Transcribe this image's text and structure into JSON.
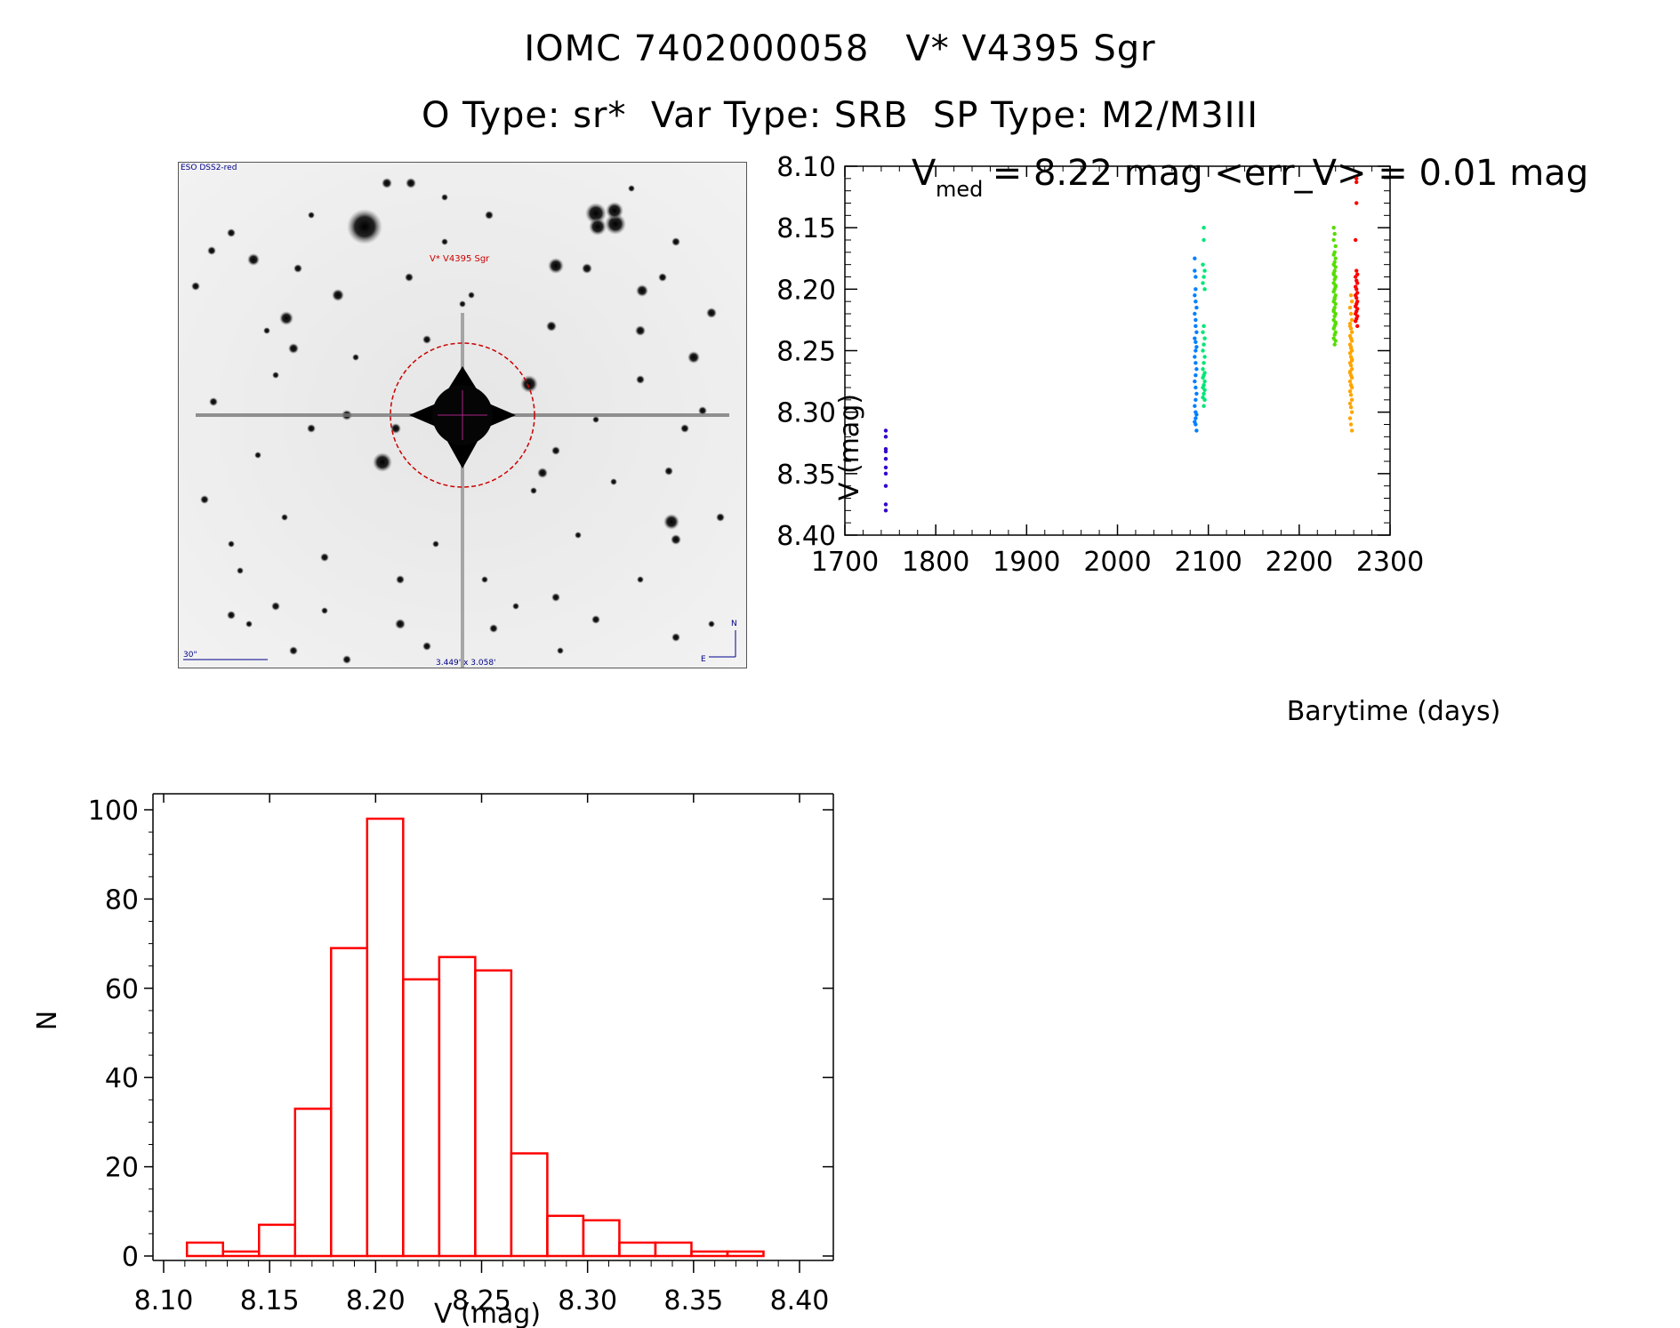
{
  "header": {
    "line1": "IOMC 7402000058   V* V4395 Sgr",
    "line2": "O Type: sr*  Var Type: SRB  SP Type: M2/M3III"
  },
  "image_panel": {
    "survey_label": "ESO DSS2-red",
    "object_label": "V* V4395 Sgr",
    "scale_label": "30\"",
    "fov_label": "3.449' x 3.058'",
    "north_label": "N",
    "east_label": "E"
  },
  "colors": {
    "hist": "#ff0000",
    "marker": "#cc0000",
    "text_blue": "#00008b"
  },
  "chart_data": [
    {
      "type": "scatter",
      "title": "V_med = 8.22 mag <err_V> = 0.01 mag",
      "title_parts": {
        "v": "V",
        "sub": "med",
        "rest": " = 8.22 mag <err_V> = 0.01 mag"
      },
      "xlabel": "Barytime (days)",
      "ylabel": "V (mag)",
      "xlim": [
        1700,
        2300
      ],
      "ylim": [
        8.1,
        8.4
      ],
      "y_inverted": true,
      "xticks": [
        1700,
        1800,
        1900,
        2000,
        2100,
        2200,
        2300
      ],
      "yticks": [
        "8.10",
        "8.15",
        "8.20",
        "8.25",
        "8.30",
        "8.35",
        "8.40"
      ],
      "groups": [
        {
          "color": "#3300cc",
          "x": [
            1745,
            1745,
            1745,
            1745,
            1745,
            1745,
            1745,
            1745,
            1745,
            1745
          ],
          "y": [
            8.315,
            8.32,
            8.33,
            8.332,
            8.338,
            8.345,
            8.35,
            8.36,
            8.375,
            8.38
          ]
        },
        {
          "color": "#0080ff",
          "x": [
            2085,
            2085,
            2086,
            2086,
            2085,
            2086,
            2087,
            2085,
            2086,
            2086,
            2087,
            2085,
            2086,
            2087,
            2086,
            2085,
            2086,
            2087,
            2086,
            2085,
            2086,
            2087,
            2086,
            2085,
            2086,
            2087,
            2086,
            2085,
            2086,
            2087
          ],
          "y": [
            8.175,
            8.185,
            8.19,
            8.2,
            8.205,
            8.21,
            8.215,
            8.22,
            8.225,
            8.23,
            8.235,
            8.24,
            8.243,
            8.247,
            8.25,
            8.255,
            8.26,
            8.265,
            8.27,
            8.275,
            8.28,
            8.285,
            8.29,
            8.295,
            8.3,
            8.302,
            8.305,
            8.308,
            8.31,
            8.315
          ]
        },
        {
          "color": "#00e676",
          "x": [
            2095,
            2095,
            2094,
            2096,
            2095,
            2094,
            2096,
            2095,
            2094,
            2096,
            2095,
            2094,
            2096,
            2095,
            2094,
            2096,
            2095,
            2094,
            2096,
            2095,
            2094,
            2096,
            2095,
            2094,
            2096,
            2095
          ],
          "y": [
            8.15,
            8.16,
            8.18,
            8.185,
            8.19,
            8.195,
            8.2,
            8.23,
            8.235,
            8.24,
            8.245,
            8.25,
            8.255,
            8.26,
            8.265,
            8.268,
            8.27,
            8.272,
            8.275,
            8.278,
            8.28,
            8.282,
            8.285,
            8.288,
            8.29,
            8.295
          ]
        },
        {
          "color": "#55dd00",
          "x": [
            2238,
            2239,
            2238,
            2240,
            2239,
            2238,
            2240,
            2239,
            2238,
            2240,
            2239,
            2238,
            2240,
            2239,
            2238,
            2240,
            2239,
            2238,
            2240,
            2239,
            2238,
            2240,
            2239,
            2238,
            2240,
            2239,
            2238,
            2240,
            2239,
            2238,
            2240,
            2239,
            2238,
            2240,
            2239,
            2238,
            2240,
            2239,
            2238,
            2240
          ],
          "y": [
            8.15,
            8.155,
            8.16,
            8.165,
            8.17,
            8.172,
            8.175,
            8.178,
            8.18,
            8.182,
            8.185,
            8.187,
            8.19,
            8.192,
            8.195,
            8.197,
            8.2,
            8.202,
            8.205,
            8.207,
            8.21,
            8.212,
            8.215,
            8.217,
            8.22,
            8.222,
            8.225,
            8.227,
            8.23,
            8.232,
            8.235,
            8.237,
            8.24,
            8.242,
            8.245,
            8.188,
            8.198,
            8.208,
            8.218,
            8.228
          ]
        },
        {
          "color": "#ffa500",
          "x": [
            2257,
            2258,
            2256,
            2257,
            2258,
            2256,
            2257,
            2258,
            2256,
            2257,
            2258,
            2256,
            2257,
            2258,
            2256,
            2257,
            2258,
            2256,
            2257,
            2258,
            2256,
            2257,
            2258,
            2256,
            2257,
            2258,
            2256,
            2257,
            2258,
            2256,
            2257,
            2258,
            2256,
            2257,
            2258,
            2256,
            2257,
            2258,
            2256,
            2257
          ],
          "y": [
            8.205,
            8.21,
            8.215,
            8.22,
            8.225,
            8.23,
            8.232,
            8.235,
            8.238,
            8.24,
            8.242,
            8.245,
            8.247,
            8.25,
            8.252,
            8.255,
            8.257,
            8.26,
            8.262,
            8.265,
            8.267,
            8.27,
            8.272,
            8.275,
            8.278,
            8.28,
            8.283,
            8.286,
            8.29,
            8.293,
            8.296,
            8.3,
            8.305,
            8.31,
            8.315,
            8.228,
            8.248,
            8.258,
            8.268,
            8.278
          ]
        },
        {
          "color": "#ff0000",
          "x": [
            2263,
            2263,
            2263,
            2262,
            2263,
            2264,
            2262,
            2263,
            2264,
            2262,
            2263,
            2264,
            2262,
            2263,
            2264,
            2263,
            2262,
            2264,
            2263,
            2262,
            2264,
            2263,
            2262,
            2264
          ],
          "y": [
            8.11,
            8.113,
            8.13,
            8.16,
            8.185,
            8.188,
            8.19,
            8.193,
            8.195,
            8.198,
            8.2,
            8.203,
            8.205,
            8.207,
            8.21,
            8.212,
            8.214,
            8.216,
            8.218,
            8.22,
            8.222,
            8.224,
            8.226,
            8.23
          ]
        }
      ]
    },
    {
      "type": "bar",
      "xlabel": "V (mag)",
      "ylabel": "N",
      "xlim": [
        8.1,
        8.4
      ],
      "ylim": [
        0,
        100
      ],
      "xticks": [
        "8.10",
        "8.15",
        "8.20",
        "8.25",
        "8.30",
        "8.35",
        "8.40"
      ],
      "yticks": [
        "0",
        "20",
        "40",
        "60",
        "80",
        "100"
      ],
      "bin_width": 0.017,
      "bin_starts": [
        8.111,
        8.128,
        8.145,
        8.162,
        8.179,
        8.196,
        8.213,
        8.23,
        8.247,
        8.264,
        8.281,
        8.298,
        8.315,
        8.332,
        8.349,
        8.366,
        8.383
      ],
      "values": [
        3,
        1,
        7,
        33,
        69,
        98,
        62,
        67,
        64,
        23,
        9,
        8,
        3,
        3,
        1,
        1,
        0
      ]
    }
  ]
}
